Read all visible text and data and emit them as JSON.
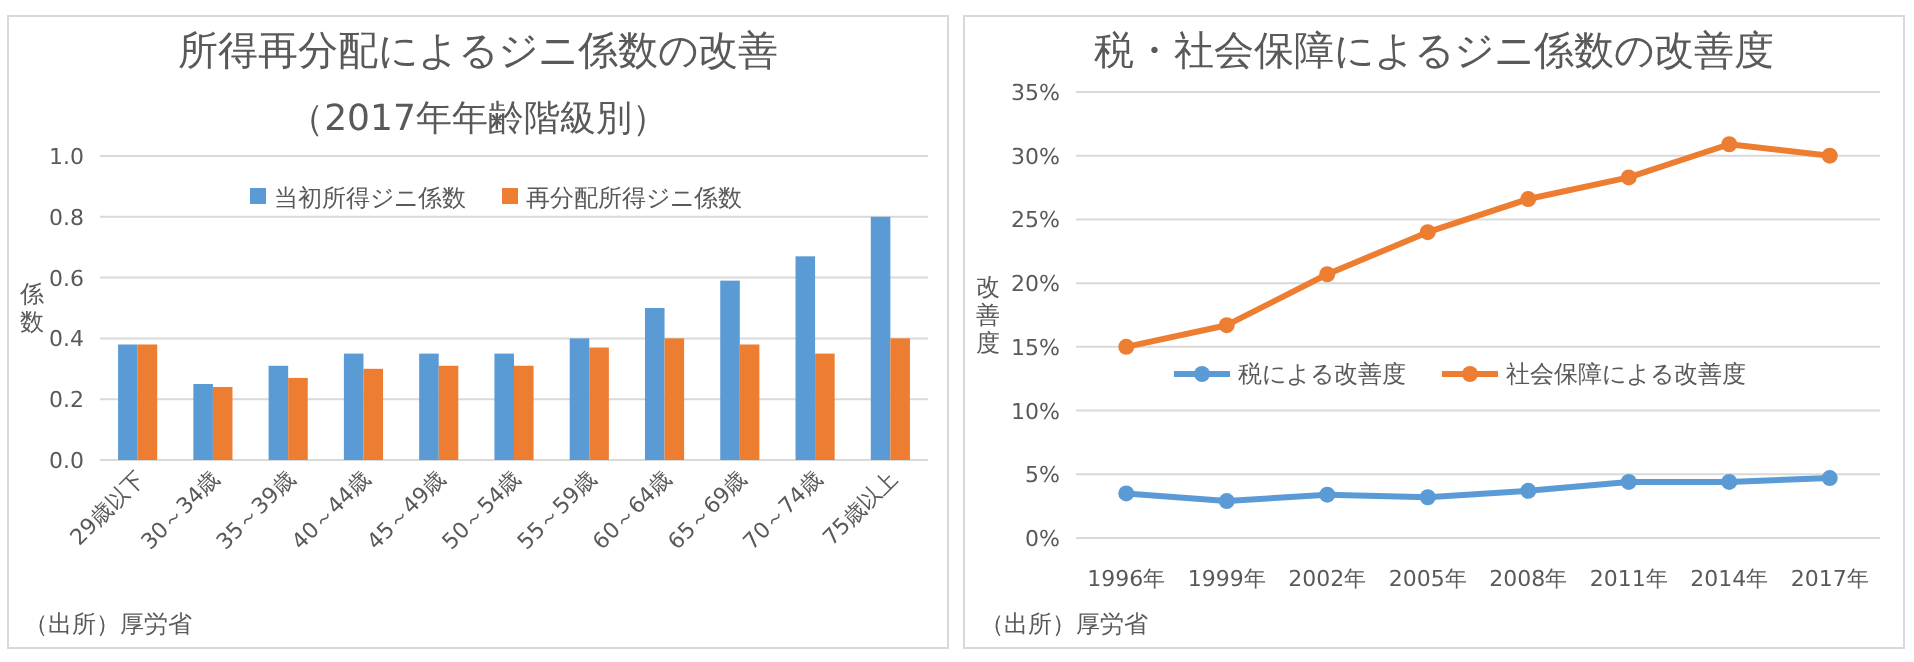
{
  "chart_data": [
    {
      "type": "bar",
      "title": "所得再分配によるジニ係数の改善",
      "subtitle": "（2017年年齢階級別）",
      "ylabel": "係数",
      "annotations": [
        "（出所）厚労省"
      ],
      "categories": [
        "29歳以下",
        "30～34歳",
        "35～39歳",
        "40～44歳",
        "45～49歳",
        "50～54歳",
        "55～59歳",
        "60～64歳",
        "65～69歳",
        "70～74歳",
        "75歳以上"
      ],
      "series": [
        {
          "name": "当初所得ジニ係数",
          "color": "#5b9bd5",
          "values": [
            0.38,
            0.25,
            0.31,
            0.35,
            0.35,
            0.35,
            0.4,
            0.5,
            0.59,
            0.67,
            0.8
          ]
        },
        {
          "name": "再分配所得ジニ係数",
          "color": "#ed7d31",
          "values": [
            0.38,
            0.24,
            0.27,
            0.3,
            0.31,
            0.31,
            0.37,
            0.4,
            0.38,
            0.35,
            0.4
          ]
        }
      ],
      "ylim": [
        0,
        1
      ],
      "yticks": [
        {
          "value": 0,
          "label": "0.0"
        },
        {
          "value": 0.2,
          "label": "0.2"
        },
        {
          "value": 0.4,
          "label": "0.4"
        },
        {
          "value": 0.6,
          "label": "0.6"
        },
        {
          "value": 0.8,
          "label": "0.8"
        },
        {
          "value": 1,
          "label": "1.0"
        }
      ],
      "grid": "y",
      "legend": "top"
    },
    {
      "type": "line",
      "title": "税・社会保障によるジニ係数の改善度",
      "ylabel": "改善度",
      "annotations": [
        "（出所）厚労省"
      ],
      "categories": [
        "1996年",
        "1999年",
        "2002年",
        "2005年",
        "2008年",
        "2011年",
        "2014年",
        "2017年"
      ],
      "series": [
        {
          "name": "税による改善度",
          "color": "#5b9bd5",
          "values": [
            3.5,
            2.9,
            3.4,
            3.2,
            3.7,
            4.4,
            4.4,
            4.7
          ]
        },
        {
          "name": "社会保障による改善度",
          "color": "#ed7d31",
          "values": [
            15.0,
            16.7,
            20.7,
            24.0,
            26.6,
            28.3,
            30.9,
            30.0
          ]
        }
      ],
      "ylim": [
        0,
        35
      ],
      "yticks": [
        {
          "value": 0,
          "label": "0%"
        },
        {
          "value": 5,
          "label": "5%"
        },
        {
          "value": 10,
          "label": "10%"
        },
        {
          "value": 15,
          "label": "15%"
        },
        {
          "value": 20,
          "label": "20%"
        },
        {
          "value": 25,
          "label": "25%"
        },
        {
          "value": 30,
          "label": "30%"
        },
        {
          "value": 35,
          "label": "35%"
        }
      ],
      "grid": "y",
      "legend": "center",
      "marker": "circle",
      "line_style": "solid"
    }
  ]
}
